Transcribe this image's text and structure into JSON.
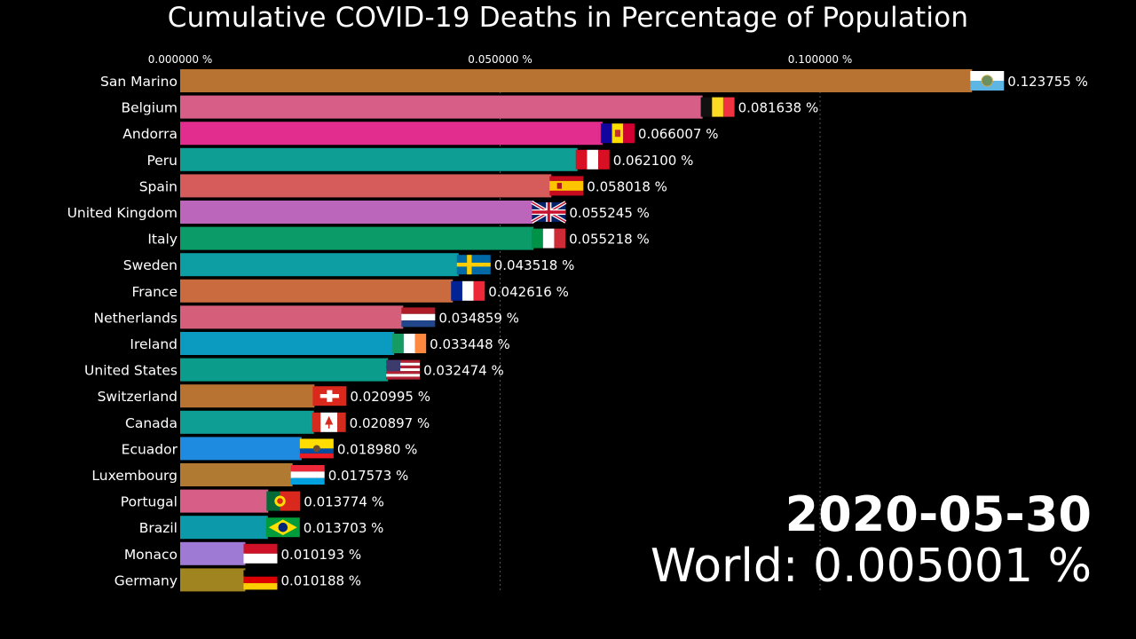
{
  "chart_data": {
    "type": "bar",
    "orientation": "horizontal",
    "title": "Cumulative COVID-19 Deaths in Percentage of Population",
    "xlim": [
      0,
      0.125
    ],
    "ticks": [
      {
        "value": 0.0,
        "label": "0.000000 %"
      },
      {
        "value": 0.05,
        "label": "0.050000 %"
      },
      {
        "value": 0.1,
        "label": "0.100000 %"
      }
    ],
    "grid": true,
    "categories": [
      "San Marino",
      "Belgium",
      "Andorra",
      "Peru",
      "Spain",
      "United Kingdom",
      "Italy",
      "Sweden",
      "France",
      "Netherlands",
      "Ireland",
      "United States",
      "Switzerland",
      "Canada",
      "Ecuador",
      "Luxembourg",
      "Portugal",
      "Brazil",
      "Monaco",
      "Germany"
    ],
    "values": [
      0.123755,
      0.081638,
      0.066007,
      0.0621,
      0.058018,
      0.055245,
      0.055218,
      0.043518,
      0.042616,
      0.034859,
      0.033448,
      0.032474,
      0.020995,
      0.020897,
      0.01898,
      0.017573,
      0.013774,
      0.013703,
      0.010193,
      0.010188
    ],
    "value_labels": [
      "0.123755 %",
      "0.081638 %",
      "0.066007 %",
      "0.062100 %",
      "0.058018 %",
      "0.055245 %",
      "0.055218 %",
      "0.043518 %",
      "0.042616 %",
      "0.034859 %",
      "0.033448 %",
      "0.032474 %",
      "0.020995 %",
      "0.020897 %",
      "0.018980 %",
      "0.017573 %",
      "0.013774 %",
      "0.013703 %",
      "0.010193 %",
      "0.010188 %"
    ],
    "colors": [
      "#b87333",
      "#d75f87",
      "#e22d8f",
      "#0e9e93",
      "#d65c5c",
      "#bb66bb",
      "#0a9b69",
      "#0c9ea3",
      "#c96a3f",
      "#d55f7a",
      "#0b9ac0",
      "#0c9c8c",
      "#b87333",
      "#0e9e93",
      "#1e8be0",
      "#b07a32",
      "#d75f87",
      "#0c9aaa",
      "#9f7ad4",
      "#a08420"
    ],
    "flags": [
      "san-marino",
      "belgium",
      "andorra",
      "peru",
      "spain",
      "united-kingdom",
      "italy",
      "sweden",
      "france",
      "netherlands",
      "ireland",
      "united-states",
      "switzerland",
      "canada",
      "ecuador",
      "luxembourg",
      "portugal",
      "brazil",
      "monaco",
      "germany"
    ]
  },
  "date": "2020-05-30",
  "world": {
    "label": "World:",
    "value": "0.005001 %"
  }
}
